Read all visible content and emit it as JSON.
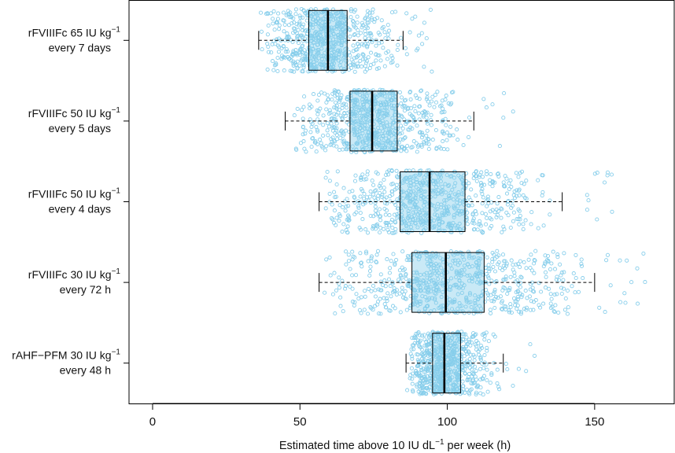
{
  "chart_data": {
    "type": "boxplot",
    "orientation": "horizontal",
    "title": "",
    "xlabel": {
      "before": "Estimated time above 10 IU dL",
      "sup": "−1",
      "after": " per week (h)"
    },
    "ylabel": "",
    "xlim": [
      -8,
      177
    ],
    "x_ticks": [
      0,
      50,
      100,
      150
    ],
    "x_tick_labels": [
      "0",
      "50",
      "100",
      "150"
    ],
    "grid": false,
    "legend": null,
    "points_per_group": 700,
    "groups": [
      {
        "label_line1": "rFVIIIFc 65 IU kg",
        "label_sup": "−1",
        "label_line2": "every 7 days",
        "whisker_low": 36,
        "q1": 53,
        "median": 59.5,
        "q3": 66,
        "whisker_high": 85,
        "point_range": [
          36,
          95
        ]
      },
      {
        "label_line1": "rFVIIIFc 50 IU kg",
        "label_sup": "−1",
        "label_line2": "every 5 days",
        "whisker_low": 45,
        "q1": 67,
        "median": 74.5,
        "q3": 83,
        "whisker_high": 109,
        "point_range": [
          45,
          124
        ]
      },
      {
        "label_line1": "rFVIIIFc 50 IU kg",
        "label_sup": "−1",
        "label_line2": "every 4 days",
        "whisker_low": 56.5,
        "q1": 84,
        "median": 94,
        "q3": 106,
        "whisker_high": 139,
        "point_range": [
          56,
          158
        ]
      },
      {
        "label_line1": "rFVIIIFc 30 IU kg",
        "label_sup": "−1",
        "label_line2": "every 72 h",
        "whisker_low": 56.5,
        "q1": 88,
        "median": 99.5,
        "q3": 112.5,
        "whisker_high": 150,
        "point_range": [
          56,
          168
        ]
      },
      {
        "label_line1": "rAHF−PFM 30 IU kg",
        "label_sup": "−1",
        "label_line2": "every 48 h",
        "whisker_low": 86,
        "q1": 95,
        "median": 99,
        "q3": 104.5,
        "whisker_high": 119,
        "point_range": [
          86,
          131
        ]
      }
    ],
    "colors": {
      "points": "#87ceeb",
      "box_fill": "#87ceeb",
      "lines": "#000000"
    }
  }
}
